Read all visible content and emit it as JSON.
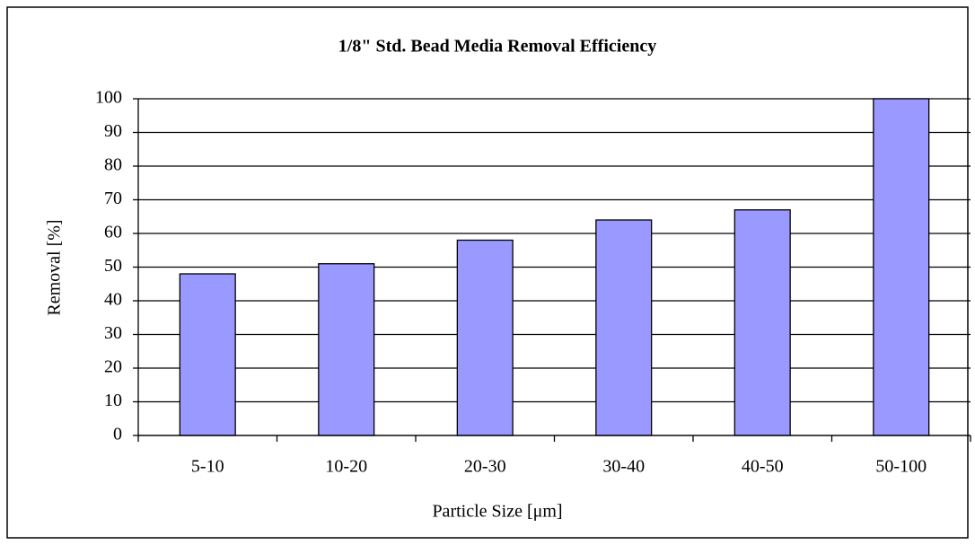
{
  "chart_data": {
    "type": "bar",
    "title": "1/8\" Std. Bead Media Removal Efficiency",
    "x_label": "Particle Size [μm]",
    "y_label": "Removal [%]",
    "categories": [
      "5-10",
      "10-20",
      "20-30",
      "30-40",
      "40-50",
      "50-100"
    ],
    "values": [
      48,
      51,
      58,
      64,
      67,
      100
    ],
    "color": "#9999ff",
    "ylim": [
      0,
      100
    ],
    "yticks": [
      0,
      10,
      20,
      30,
      40,
      50,
      60,
      70,
      80,
      90,
      100
    ],
    "grid": true
  }
}
